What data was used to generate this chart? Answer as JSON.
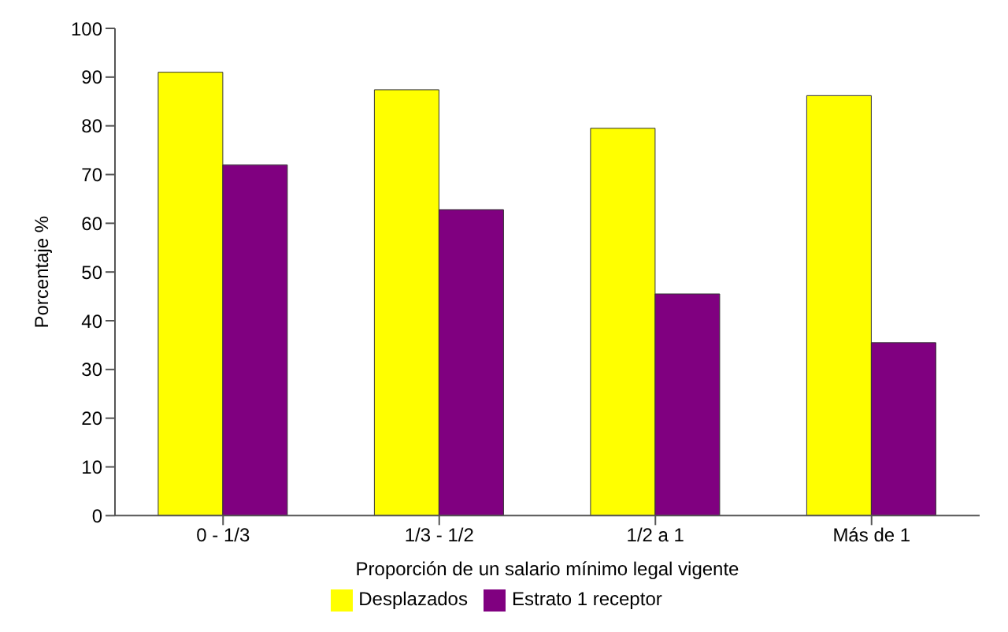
{
  "chart_data": {
    "type": "bar",
    "xlabel": "Proporción de un salario mínimo legal vigente",
    "ylabel": "Porcentaje %",
    "categories": [
      "0 - 1/3",
      "1/3 - 1/2",
      "1/2 a 1",
      "Más de 1"
    ],
    "series": [
      {
        "name": "Desplazados",
        "color": "#ffff00",
        "values": [
          91,
          87.4,
          79.5,
          86.2
        ]
      },
      {
        "name": "Estrato 1 receptor",
        "color": "#800080",
        "values": [
          72,
          62.8,
          45.5,
          35.5
        ]
      }
    ],
    "ylim": [
      0,
      100
    ],
    "yticks": [
      0,
      10,
      20,
      30,
      40,
      50,
      60,
      70,
      80,
      90,
      100
    ],
    "grid": false,
    "legend": "bottom"
  }
}
